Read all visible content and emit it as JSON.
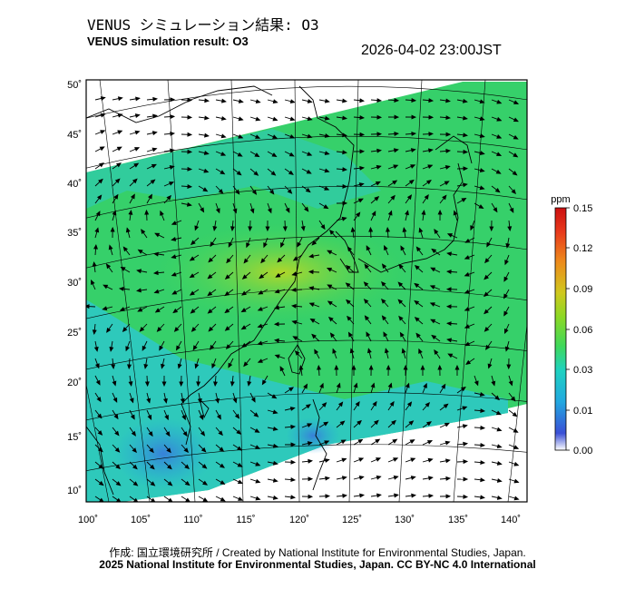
{
  "header": {
    "title_jp": "VENUS シミュレーション結果: O3",
    "title_en": "VENUS simulation result: O3",
    "datetime": "2026-04-02 23:00JST"
  },
  "map": {
    "lon_labels": [
      "100˚",
      "105˚",
      "110˚",
      "115˚",
      "120˚",
      "125˚",
      "130˚",
      "135˚",
      "140˚"
    ],
    "lat_labels": [
      "50˚",
      "45˚",
      "40˚",
      "35˚",
      "30˚",
      "25˚",
      "20˚",
      "15˚",
      "10˚"
    ],
    "lon_range": [
      100,
      142
    ],
    "lat_range": [
      8,
      51
    ]
  },
  "colorbar": {
    "unit": "ppm",
    "ticks": [
      "0.15",
      "0.12",
      "0.09",
      "0.06",
      "0.03",
      "0.01",
      "0.00"
    ],
    "colors": [
      "#ffffff",
      "#3a4fd6",
      "#22a8e0",
      "#1fd2c0",
      "#3fd85a",
      "#8cd825",
      "#d0c81e",
      "#ee8a1c",
      "#e83a1c",
      "#cc1010"
    ]
  },
  "footer": {
    "credit": "作成: 国立環境研究所 / Created by National Institute for Environmental Studies, Japan.",
    "license": "2025 National Institute for Environmental Studies, Japan. CC BY-NC 4.0 International"
  }
}
